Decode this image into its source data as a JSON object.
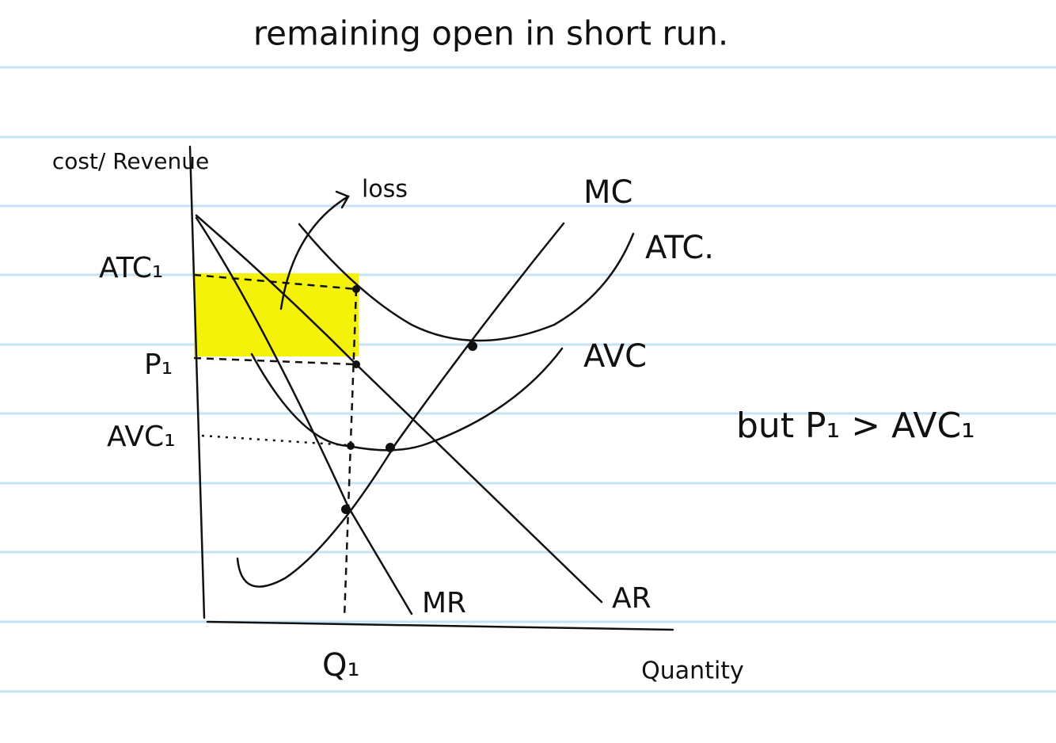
{
  "heading": "remaining open in short run.",
  "axes": {
    "y_label": "cost/ Revenue",
    "x_label": "Quantity"
  },
  "levels": {
    "atc": "ATC₁",
    "price": "P₁",
    "avc": "AVC₁"
  },
  "quantity": "Q₁",
  "curves": {
    "mc": "MC",
    "atc": "ATC.",
    "avc": "AVC",
    "mr": "MR",
    "ar": "AR"
  },
  "loss_label": "loss",
  "note": "but P₁ > AVC₁"
}
